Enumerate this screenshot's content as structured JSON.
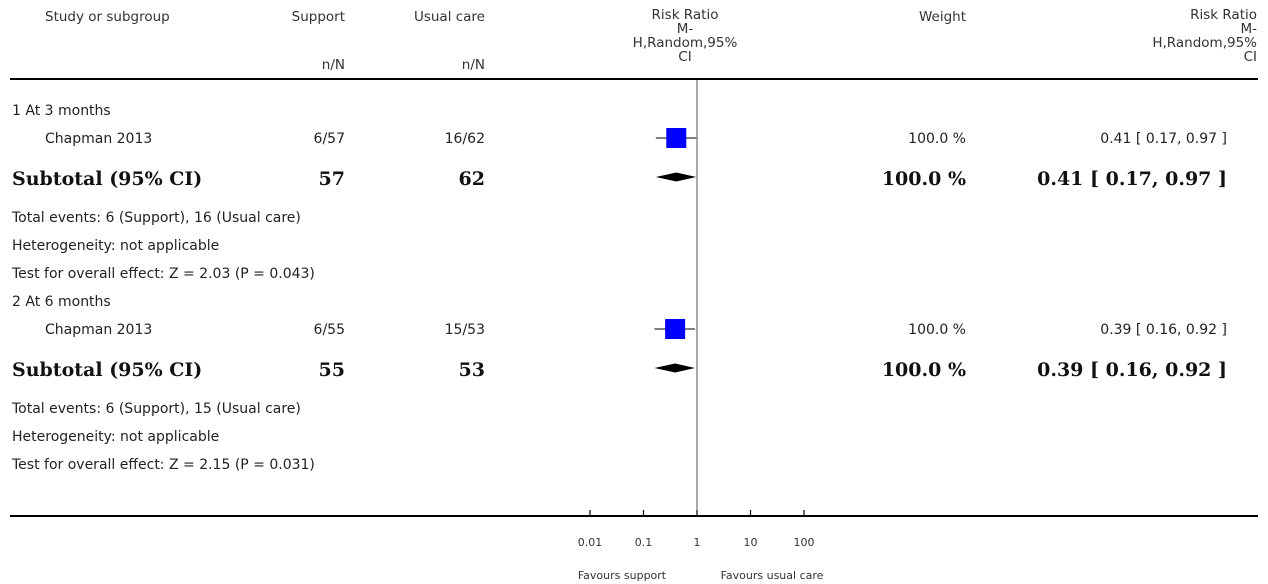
{
  "headers": {
    "study": "Study or subgroup",
    "support": "Support",
    "support_sub": "n/N",
    "usual": "Usual care",
    "usual_sub": "n/N",
    "rr_plot": [
      "Risk Ratio",
      "M-",
      "H,Random,95%",
      "CI"
    ],
    "weight": "Weight",
    "rr_text": [
      "Risk Ratio",
      "M-",
      "H,Random,95%",
      "CI"
    ]
  },
  "groups": [
    {
      "label": "1 At 3 months",
      "study": {
        "name": "Chapman 2013",
        "support": "6/57",
        "usual": "16/62",
        "weight": "100.0 %",
        "ci_text": "0.41 [ 0.17, 0.97 ]"
      },
      "subtotal": {
        "label": "Subtotal (95% CI)",
        "support": "57",
        "usual": "62",
        "weight": "100.0 %",
        "ci_text": "0.41 [ 0.17, 0.97 ]"
      },
      "notes": [
        "Total events: 6 (Support), 16 (Usual care)",
        "Heterogeneity: not applicable",
        "Test for overall effect: Z = 2.03 (P = 0.043)"
      ]
    },
    {
      "label": "2 At 6 months",
      "study": {
        "name": "Chapman 2013",
        "support": "6/55",
        "usual": "15/53",
        "weight": "100.0 %",
        "ci_text": "0.39 [ 0.16, 0.92 ]"
      },
      "subtotal": {
        "label": "Subtotal (95% CI)",
        "support": "55",
        "usual": "53",
        "weight": "100.0 %",
        "ci_text": "0.39 [ 0.16, 0.92 ]"
      },
      "notes": [
        "Total events: 6 (Support), 15 (Usual care)",
        "Heterogeneity: not applicable",
        "Test for overall effect: Z = 2.15 (P = 0.031)"
      ]
    }
  ],
  "chart_data": {
    "type": "forest",
    "scale": "log",
    "xlim": [
      0.01,
      100
    ],
    "ticks": [
      0.01,
      0.1,
      1,
      10,
      100
    ],
    "tick_labels": [
      "0.01",
      "0.1",
      "1",
      "10",
      "100"
    ],
    "favours_left": "Favours support",
    "favours_right": "Favours usual care",
    "marker_color": "#0000ff",
    "rows": [
      {
        "group": 0,
        "kind": "study",
        "est": 0.41,
        "lo": 0.17,
        "hi": 0.97
      },
      {
        "group": 0,
        "kind": "subtotal",
        "est": 0.41,
        "lo": 0.17,
        "hi": 0.97
      },
      {
        "group": 1,
        "kind": "study",
        "est": 0.39,
        "lo": 0.16,
        "hi": 0.92
      },
      {
        "group": 1,
        "kind": "subtotal",
        "est": 0.39,
        "lo": 0.16,
        "hi": 0.92
      }
    ]
  }
}
